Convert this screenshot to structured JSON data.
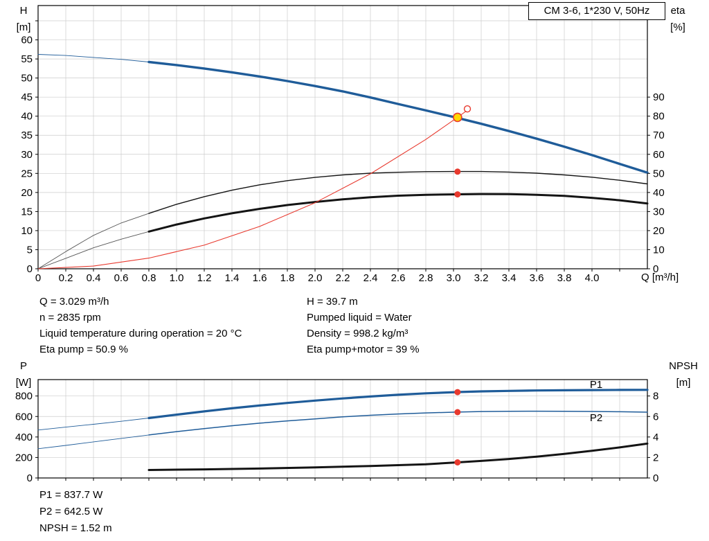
{
  "colors": {
    "blue": "#1f5c99",
    "black": "#141414",
    "thin_gray": "#555555",
    "red": "#e8392e",
    "yellow": "#ffd800",
    "grid": "#cccccc",
    "frame": "#000000"
  },
  "title_box": {
    "text": "CM 3-6, 1*230 V, 50Hz"
  },
  "axis_titles": {
    "top_left": [
      "H",
      "[m]"
    ],
    "top_right": [
      "eta",
      "[%]"
    ],
    "x": "Q [m³/h]",
    "bottom_left": [
      "P",
      "[W]"
    ],
    "bottom_right": [
      "NPSH",
      "[m]"
    ]
  },
  "operating_point_info": {
    "col1": [
      "Q = 3.029 m³/h",
      "n = 2835 rpm",
      "Liquid temperature during operation = 20 °C",
      "Eta pump = 50.9 %"
    ],
    "col2": [
      "H = 39.7 m",
      "Pumped liquid = Water",
      "Density = 998.2 kg/m³",
      "Eta pump+motor = 39 %"
    ]
  },
  "results": [
    "P1 = 837.7 W",
    "P2 = 642.5 W",
    "NPSH = 1.52 m"
  ],
  "chart_data": [
    {
      "type": "line",
      "name": "qh-eta-chart",
      "title": "CM 3-6, 1*230 V, 50Hz",
      "x": {
        "min": 0,
        "max": 4.4,
        "ticks": [
          0,
          0.2,
          0.4,
          0.6,
          0.8,
          1.0,
          1.2,
          1.4,
          1.6,
          1.8,
          2.0,
          2.2,
          2.4,
          2.6,
          2.8,
          3.0,
          3.2,
          3.4,
          3.6,
          3.8,
          4.0,
          4.2
        ],
        "labels": [
          "0",
          "0.2",
          "0.4",
          "0.6",
          "0.8",
          "1.0",
          "1.2",
          "1.4",
          "1.6",
          "1.8",
          "2.0",
          "2.2",
          "2.4",
          "2.6",
          "2.8",
          "3.0",
          "3.2",
          "3.4",
          "3.6",
          "3.8",
          "4.0",
          ""
        ],
        "unit": "m³/h"
      },
      "left_axis": {
        "label": "H [m]",
        "min": 0,
        "max": 69,
        "ticks": [
          0,
          5,
          10,
          15,
          20,
          25,
          30,
          35,
          40,
          45,
          50,
          55,
          60,
          65
        ],
        "labels": [
          "0",
          "5",
          "10",
          "15",
          "20",
          "25",
          "30",
          "35",
          "40",
          "45",
          "50",
          "55",
          "60",
          ""
        ]
      },
      "right_axis": {
        "label": "eta [%]",
        "min": 0,
        "max": 138,
        "ticks": [
          0,
          10,
          20,
          30,
          40,
          50,
          60,
          70,
          80,
          90
        ],
        "labels": [
          "0",
          "10",
          "20",
          "30",
          "40",
          "50",
          "60",
          "70",
          "80",
          "90"
        ]
      },
      "series": [
        {
          "name": "qh-curve-extension",
          "axis": "left",
          "color": "#1f5c99",
          "width": 0.9,
          "points": [
            [
              0,
              56.2
            ],
            [
              0.2,
              55.9
            ],
            [
              0.4,
              55.4
            ],
            [
              0.6,
              54.9
            ],
            [
              0.8,
              54.2
            ]
          ]
        },
        {
          "name": "qh-curve",
          "axis": "left",
          "color": "#1f5c99",
          "width": 3.4,
          "points": [
            [
              0.8,
              54.2
            ],
            [
              1.0,
              53.4
            ],
            [
              1.2,
              52.5
            ],
            [
              1.4,
              51.5
            ],
            [
              1.6,
              50.4
            ],
            [
              1.8,
              49.2
            ],
            [
              2.0,
              47.9
            ],
            [
              2.2,
              46.5
            ],
            [
              2.4,
              44.9
            ],
            [
              2.6,
              43.2
            ],
            [
              2.8,
              41.5
            ],
            [
              3.0,
              39.8
            ],
            [
              3.2,
              38.0
            ],
            [
              3.4,
              36.1
            ],
            [
              3.6,
              34.1
            ],
            [
              3.8,
              32.0
            ],
            [
              4.0,
              29.8
            ],
            [
              4.2,
              27.5
            ],
            [
              4.4,
              25.2
            ]
          ]
        },
        {
          "name": "eta-pump-extension",
          "axis": "right",
          "color": "#555555",
          "width": 0.9,
          "points": [
            [
              0,
              0
            ],
            [
              0.2,
              9
            ],
            [
              0.4,
              17.5
            ],
            [
              0.6,
              24
            ],
            [
              0.8,
              29
            ]
          ]
        },
        {
          "name": "eta-pump-curve",
          "axis": "right",
          "color": "#141414",
          "width": 1.4,
          "points": [
            [
              0.8,
              29
            ],
            [
              1.0,
              33.8
            ],
            [
              1.2,
              37.8
            ],
            [
              1.4,
              41.2
            ],
            [
              1.6,
              44.0
            ],
            [
              1.8,
              46.2
            ],
            [
              2.0,
              47.9
            ],
            [
              2.2,
              49.2
            ],
            [
              2.4,
              50.1
            ],
            [
              2.6,
              50.6
            ],
            [
              2.8,
              50.9
            ],
            [
              3.0,
              51.0
            ],
            [
              3.2,
              51.0
            ],
            [
              3.4,
              50.7
            ],
            [
              3.6,
              50.1
            ],
            [
              3.8,
              49.2
            ],
            [
              4.0,
              48.0
            ],
            [
              4.2,
              46.4
            ],
            [
              4.4,
              44.5
            ]
          ]
        },
        {
          "name": "eta-pump-motor-extension",
          "axis": "right",
          "color": "#555555",
          "width": 0.9,
          "points": [
            [
              0,
              0
            ],
            [
              0.2,
              5.5
            ],
            [
              0.4,
              11
            ],
            [
              0.6,
              15.5
            ],
            [
              0.8,
              19.5
            ]
          ]
        },
        {
          "name": "eta-pump-motor-curve",
          "axis": "right",
          "color": "#141414",
          "width": 3,
          "points": [
            [
              0.8,
              19.5
            ],
            [
              1.0,
              23.2
            ],
            [
              1.2,
              26.4
            ],
            [
              1.4,
              29.1
            ],
            [
              1.6,
              31.4
            ],
            [
              1.8,
              33.4
            ],
            [
              2.0,
              35.0
            ],
            [
              2.2,
              36.4
            ],
            [
              2.4,
              37.5
            ],
            [
              2.6,
              38.3
            ],
            [
              2.8,
              38.8
            ],
            [
              3.0,
              39.0
            ],
            [
              3.2,
              39.2
            ],
            [
              3.4,
              39.1
            ],
            [
              3.6,
              38.8
            ],
            [
              3.8,
              38.2
            ],
            [
              4.0,
              37.2
            ],
            [
              4.2,
              35.9
            ],
            [
              4.4,
              34.2
            ]
          ]
        },
        {
          "name": "requested-duty-curve",
          "axis": "left",
          "color": "#e8392e",
          "width": 1.1,
          "points": [
            [
              0,
              0
            ],
            [
              0.4,
              0.7
            ],
            [
              0.8,
              2.8
            ],
            [
              1.2,
              6.2
            ],
            [
              1.6,
              11.1
            ],
            [
              2.0,
              17.3
            ],
            [
              2.4,
              24.9
            ],
            [
              2.8,
              33.9
            ],
            [
              3.029,
              39.7
            ],
            [
              3.09,
              41.3
            ]
          ]
        }
      ],
      "markers": [
        {
          "name": "requested-duty-point",
          "q": 3.1,
          "v": 41.9,
          "axis": "left",
          "style": "open"
        },
        {
          "name": "eta-pump-point",
          "q": 3.029,
          "v": 50.9,
          "axis": "right",
          "style": "dot"
        },
        {
          "name": "eta-pump-motor-point",
          "q": 3.029,
          "v": 39.0,
          "axis": "right",
          "style": "dot"
        },
        {
          "name": "operating-point",
          "q": 3.029,
          "v": 39.7,
          "axis": "left",
          "style": "operating"
        }
      ],
      "annotations": []
    },
    {
      "type": "line",
      "name": "power-npsh-chart",
      "x": {
        "min": 0,
        "max": 4.4,
        "ticks": [
          0,
          0.2,
          0.4,
          0.6,
          0.8,
          1.0,
          1.2,
          1.4,
          1.6,
          1.8,
          2.0,
          2.2,
          2.4,
          2.6,
          2.8,
          3.0,
          3.2,
          3.4,
          3.6,
          3.8,
          4.0,
          4.2
        ],
        "labels": null,
        "unit": "m³/h"
      },
      "left_axis": {
        "label": "P [W]",
        "min": 0,
        "max": 960,
        "ticks": [
          0,
          200,
          400,
          600,
          800
        ],
        "labels": [
          "0",
          "200",
          "400",
          "600",
          "800"
        ]
      },
      "right_axis": {
        "label": "NPSH [m]",
        "min": 0,
        "max": 9.6,
        "ticks": [
          0,
          2,
          4,
          6,
          8
        ],
        "labels": [
          "0",
          "2",
          "4",
          "6",
          "8"
        ]
      },
      "series": [
        {
          "name": "p1-curve-extension",
          "axis": "left",
          "color": "#1f5c99",
          "width": 0.9,
          "points": [
            [
              0,
              468
            ],
            [
              0.2,
              496
            ],
            [
              0.4,
              524
            ],
            [
              0.6,
              553
            ],
            [
              0.8,
              585
            ]
          ]
        },
        {
          "name": "p1-curve",
          "axis": "left",
          "color": "#1f5c99",
          "width": 3.2,
          "points": [
            [
              0.8,
              585
            ],
            [
              1.0,
              618
            ],
            [
              1.2,
              650
            ],
            [
              1.4,
              680
            ],
            [
              1.6,
              707
            ],
            [
              1.8,
              732
            ],
            [
              2.0,
              755
            ],
            [
              2.2,
              776
            ],
            [
              2.4,
              795
            ],
            [
              2.6,
              812
            ],
            [
              2.8,
              826
            ],
            [
              3.029,
              838
            ],
            [
              3.2,
              845
            ],
            [
              3.4,
              850
            ],
            [
              3.6,
              854
            ],
            [
              3.8,
              856
            ],
            [
              4.0,
              858
            ],
            [
              4.2,
              859
            ],
            [
              4.4,
              860
            ]
          ]
        },
        {
          "name": "p2-curve-extension",
          "axis": "left",
          "color": "#1f5c99",
          "width": 0.9,
          "points": [
            [
              0,
              285
            ],
            [
              0.2,
              318
            ],
            [
              0.4,
              352
            ],
            [
              0.6,
              386
            ],
            [
              0.8,
              420
            ]
          ]
        },
        {
          "name": "p2-curve",
          "axis": "left",
          "color": "#1f5c99",
          "width": 1.5,
          "points": [
            [
              0.8,
              420
            ],
            [
              1.0,
              452
            ],
            [
              1.2,
              482
            ],
            [
              1.4,
              510
            ],
            [
              1.6,
              535
            ],
            [
              1.8,
              557
            ],
            [
              2.0,
              577
            ],
            [
              2.2,
              596
            ],
            [
              2.4,
              612
            ],
            [
              2.6,
              625
            ],
            [
              2.8,
              635
            ],
            [
              3.029,
              643
            ],
            [
              3.2,
              648
            ],
            [
              3.4,
              651
            ],
            [
              3.6,
              652
            ],
            [
              3.8,
              651
            ],
            [
              4.0,
              649
            ],
            [
              4.2,
              646
            ],
            [
              4.4,
              642
            ]
          ]
        },
        {
          "name": "npsh-curve",
          "axis": "right",
          "color": "#141414",
          "width": 3,
          "points": [
            [
              0.8,
              0.78
            ],
            [
              1.2,
              0.84
            ],
            [
              1.6,
              0.92
            ],
            [
              2.0,
              1.03
            ],
            [
              2.4,
              1.17
            ],
            [
              2.8,
              1.34
            ],
            [
              3.029,
              1.52
            ],
            [
              3.2,
              1.66
            ],
            [
              3.4,
              1.85
            ],
            [
              3.6,
              2.08
            ],
            [
              3.8,
              2.35
            ],
            [
              4.0,
              2.65
            ],
            [
              4.2,
              2.98
            ],
            [
              4.4,
              3.35
            ]
          ]
        }
      ],
      "markers": [
        {
          "name": "p1-point",
          "q": 3.029,
          "v": 837.7,
          "axis": "left",
          "style": "dot"
        },
        {
          "name": "p2-point",
          "q": 3.029,
          "v": 642.5,
          "axis": "left",
          "style": "dot"
        },
        {
          "name": "npsh-point",
          "q": 3.029,
          "v": 1.52,
          "axis": "right",
          "style": "dot"
        }
      ],
      "annotations": [
        {
          "text": "P1",
          "q": 4.03,
          "v": 879,
          "axis": "left",
          "color": "#1f5c99"
        },
        {
          "text": "P2",
          "q": 4.03,
          "v": 554,
          "axis": "left",
          "color": "#1f5c99"
        }
      ]
    }
  ]
}
